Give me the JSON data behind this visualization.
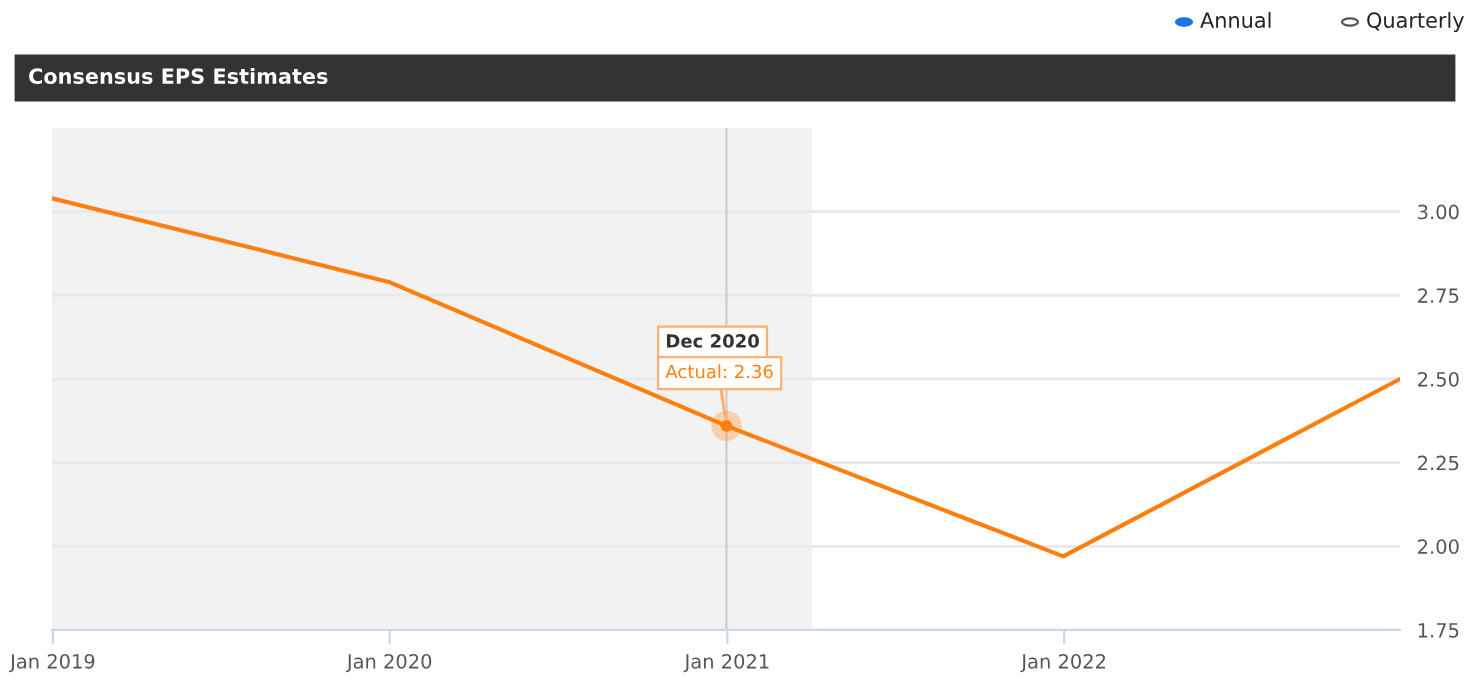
{
  "chart_data": {
    "type": "line",
    "title": "Consensus EPS Estimates",
    "x": [
      "2018-12-31",
      "2019-12-31",
      "2020-12-31",
      "2021-12-31",
      "2022-12-31"
    ],
    "series": [
      {
        "color": "#ff7f0e",
        "values": [
          3.04,
          2.79,
          2.36,
          1.97,
          2.5
        ]
      }
    ],
    "xlim": [
      "2018-12-31",
      "2022-12-31"
    ],
    "xticks": [
      {
        "value": "2019-01-01",
        "label": "Jan 2019"
      },
      {
        "value": "2020-01-01",
        "label": "Jan 2020"
      },
      {
        "value": "2021-01-01",
        "label": "Jan 2021"
      },
      {
        "value": "2022-01-01",
        "label": "Jan 2022"
      }
    ],
    "ylim": [
      1.75,
      3.25
    ],
    "yticks": [
      {
        "value": 1.75,
        "label": "1.75"
      },
      {
        "value": 2,
        "label": "2.00"
      },
      {
        "value": 2.25,
        "label": "2.25"
      },
      {
        "value": 2.5,
        "label": "2.50"
      },
      {
        "value": 2.75,
        "label": "2.75"
      },
      {
        "value": 3,
        "label": "3.00"
      }
    ],
    "bands": [
      {
        "axis": "x",
        "from": "2018-12-31",
        "to": "2021-04-03",
        "color": "#f2f2f2"
      }
    ],
    "ref_lines": [
      {
        "axis": "x",
        "value": "2020-12-31",
        "color": "#cccccc"
      }
    ],
    "annotations": [
      "Annual",
      "Quarterly",
      {
        "text": "Dec 2020",
        "x": "2020-12-31",
        "y": 2.36
      },
      {
        "text": "Actual: 2.36",
        "x": "2020-12-31",
        "y": 2.36
      }
    ],
    "grid": "y",
    "marker": "none",
    "line_style": "solid"
  }
}
